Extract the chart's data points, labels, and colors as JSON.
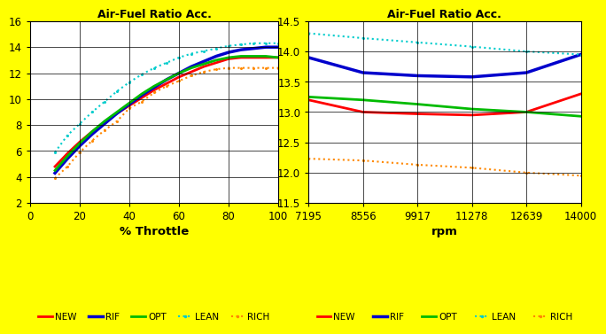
{
  "title": "Air-Fuel Ratio Acc.",
  "background_color": "#FFFF00",
  "plot_bg_color": "#FFFFFF",
  "left": {
    "xlabel": "% Throttle",
    "xlim": [
      0,
      100
    ],
    "xticks": [
      0,
      20,
      40,
      60,
      80,
      100
    ],
    "ylim": [
      2,
      16
    ],
    "yticks": [
      2,
      4,
      6,
      8,
      10,
      12,
      14,
      16
    ],
    "throttle_x": [
      10,
      15,
      20,
      25,
      30,
      35,
      40,
      45,
      50,
      55,
      60,
      65,
      70,
      75,
      80,
      85,
      90,
      95,
      100
    ],
    "NEW": [
      4.8,
      5.8,
      6.7,
      7.5,
      8.2,
      8.9,
      9.5,
      10.1,
      10.7,
      11.2,
      11.7,
      12.1,
      12.5,
      12.8,
      13.1,
      13.2,
      13.2,
      13.2,
      13.2
    ],
    "RIF": [
      4.3,
      5.4,
      6.4,
      7.3,
      8.1,
      8.9,
      9.6,
      10.3,
      10.9,
      11.5,
      12.0,
      12.5,
      12.9,
      13.3,
      13.6,
      13.8,
      13.9,
      14.0,
      14.0
    ],
    "OPT": [
      4.5,
      5.6,
      6.6,
      7.5,
      8.3,
      9.0,
      9.7,
      10.4,
      11.0,
      11.5,
      12.0,
      12.4,
      12.7,
      13.0,
      13.2,
      13.3,
      13.3,
      13.3,
      13.2
    ],
    "LEAN": [
      5.9,
      7.2,
      8.1,
      9.0,
      9.8,
      10.6,
      11.3,
      11.9,
      12.4,
      12.8,
      13.2,
      13.5,
      13.7,
      13.9,
      14.1,
      14.2,
      14.3,
      14.3,
      14.3
    ],
    "RICH": [
      3.9,
      4.8,
      5.9,
      6.8,
      7.6,
      8.3,
      9.3,
      9.8,
      10.5,
      11.0,
      11.4,
      11.8,
      12.1,
      12.3,
      12.4,
      12.4,
      12.4,
      12.4,
      12.4
    ]
  },
  "right": {
    "xlabel": "rpm",
    "xlim_vals": [
      7195,
      8556,
      9917,
      11278,
      12639,
      14000
    ],
    "ylim": [
      11.5,
      14.5
    ],
    "yticks": [
      11.5,
      12.0,
      12.5,
      13.0,
      13.5,
      14.0,
      14.5
    ],
    "rpm_x": [
      7195,
      8556,
      9917,
      11278,
      12639,
      14000
    ],
    "NEW": [
      13.2,
      13.0,
      12.97,
      12.95,
      13.0,
      13.3
    ],
    "RIF": [
      13.9,
      13.65,
      13.6,
      13.58,
      13.65,
      13.95
    ],
    "OPT": [
      13.25,
      13.2,
      13.13,
      13.05,
      13.0,
      12.93
    ],
    "LEAN": [
      14.3,
      14.22,
      14.15,
      14.08,
      14.0,
      13.95
    ],
    "RICH": [
      12.23,
      12.2,
      12.13,
      12.08,
      12.0,
      11.95
    ]
  },
  "series": {
    "NEW": {
      "color": "#FF0000",
      "lw": 2.0,
      "ls": "-",
      "dot": false
    },
    "RIF": {
      "color": "#0000CC",
      "lw": 2.5,
      "ls": "-",
      "dot": false
    },
    "OPT": {
      "color": "#00BB00",
      "lw": 2.0,
      "ls": "-",
      "dot": false
    },
    "LEAN": {
      "color": "#00CCCC",
      "lw": 1.5,
      "ls": ":",
      "dot": true
    },
    "RICH": {
      "color": "#FF8800",
      "lw": 1.5,
      "ls": ":",
      "dot": true
    }
  },
  "legend_labels": [
    "NEW",
    "RIF",
    "OPT",
    "LEAN",
    "RICH"
  ]
}
